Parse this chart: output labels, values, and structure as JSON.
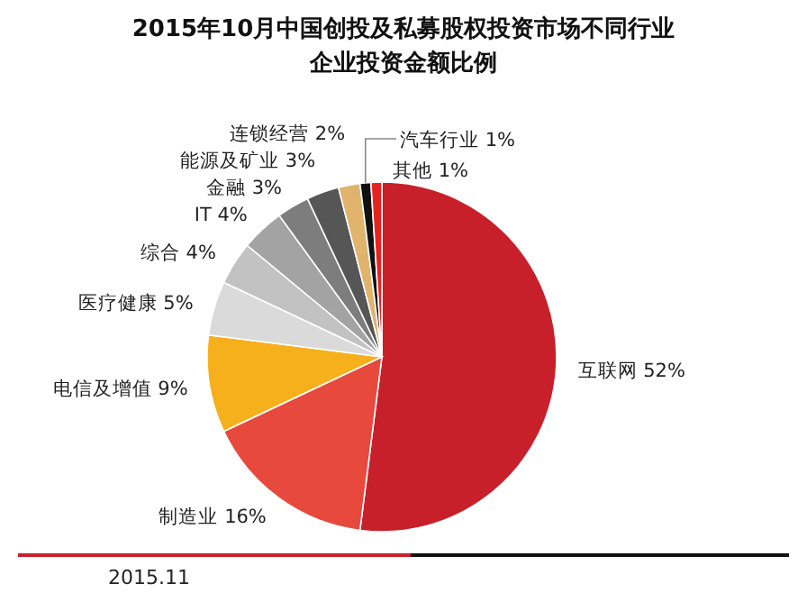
{
  "chart_data": {
    "type": "pie",
    "title": "2015年10月中国创投及私募股权投资市场不同行业企业投资金额比例",
    "categories": [
      "互联网",
      "制造业",
      "电信及增值",
      "医疗健康",
      "综合",
      "IT",
      "金融",
      "能源及矿业",
      "连锁经营",
      "汽车行业",
      "其他"
    ],
    "values": [
      52,
      16,
      9,
      5,
      4,
      4,
      3,
      3,
      2,
      1,
      1
    ],
    "value_labels": [
      "52%",
      "16%",
      "9%",
      "5%",
      "4%",
      "4%",
      "3%",
      "3%",
      "2%",
      "1%",
      "1%"
    ],
    "colors": [
      "#c8202a",
      "#e8493d",
      "#f5b01c",
      "#dadada",
      "#c2c2c2",
      "#a3a3a3",
      "#7d7d7d",
      "#565656",
      "#e0b46c",
      "#111111",
      "#e8231f"
    ],
    "annotations": [
      "2015.11"
    ],
    "legend": false
  }
}
